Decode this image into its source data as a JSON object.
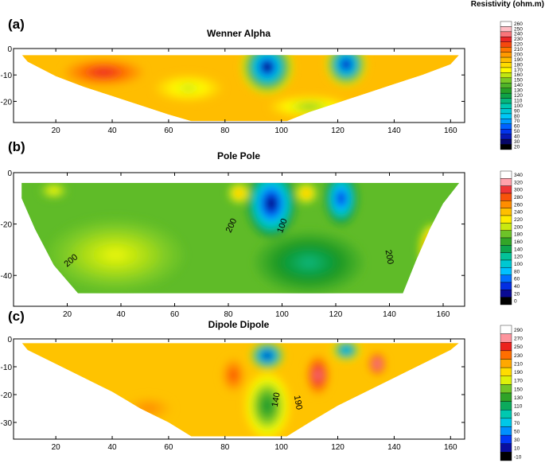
{
  "figure": {
    "legend_title": "Resistivity (ohm.m)"
  },
  "chart_data": [
    {
      "type": "heatmap",
      "panel_label": "(a)",
      "title": "Wenner Alpha",
      "xlim": [
        5,
        165
      ],
      "ylim": [
        -28,
        0
      ],
      "x_ticks": [
        20,
        40,
        60,
        80,
        100,
        120,
        140,
        160
      ],
      "y_ticks": [
        0,
        -10,
        -20
      ],
      "colorbar_ticks": [
        260,
        250,
        240,
        230,
        220,
        210,
        200,
        190,
        180,
        170,
        160,
        150,
        140,
        130,
        120,
        110,
        100,
        90,
        80,
        70,
        60,
        50,
        40,
        30,
        20
      ],
      "colorbar_range": [
        20,
        260
      ],
      "contour_labels": [],
      "background_value": 190,
      "section_outline": [
        [
          8,
          -2.5
        ],
        [
          163,
          -2.5
        ],
        [
          160,
          -6
        ],
        [
          150,
          -10
        ],
        [
          140,
          -13.5
        ],
        [
          130,
          -17
        ],
        [
          120,
          -20.5
        ],
        [
          110,
          -24
        ],
        [
          102,
          -27.5
        ],
        [
          68,
          -27.5
        ],
        [
          60,
          -25
        ],
        [
          50,
          -21.5
        ],
        [
          40,
          -18
        ],
        [
          30,
          -14.5
        ],
        [
          20,
          -10.5
        ],
        [
          10,
          -5
        ]
      ],
      "anomalies": [
        {
          "x": 95,
          "y": -7,
          "value": 20,
          "rx": 9,
          "ry": 10
        },
        {
          "x": 123,
          "y": -6,
          "value": 25,
          "rx": 7,
          "ry": 8
        },
        {
          "x": 37,
          "y": -9,
          "value": 230,
          "rx": 14,
          "ry": 5
        },
        {
          "x": 110,
          "y": -22,
          "value": 150,
          "rx": 14,
          "ry": 4
        },
        {
          "x": 67,
          "y": -15,
          "value": 160,
          "rx": 12,
          "ry": 5
        }
      ]
    },
    {
      "type": "heatmap",
      "panel_label": "(b)",
      "title": "Pole Pole",
      "xlim": [
        0,
        168
      ],
      "ylim": [
        -52,
        0
      ],
      "x_ticks": [
        20,
        40,
        60,
        80,
        100,
        120,
        140,
        160
      ],
      "y_ticks": [
        0,
        -20,
        -40
      ],
      "colorbar_ticks": [
        340,
        320,
        300,
        280,
        260,
        240,
        220,
        200,
        180,
        160,
        140,
        120,
        100,
        80,
        60,
        40,
        20,
        0
      ],
      "colorbar_range": [
        0,
        340
      ],
      "contour_labels": [
        {
          "text": "200",
          "x": 22,
          "y": -35,
          "rotate": -40
        },
        {
          "text": "200",
          "x": 82,
          "y": -21,
          "rotate": -65
        },
        {
          "text": "100",
          "x": 101,
          "y": -21,
          "rotate": -70
        },
        {
          "text": "200",
          "x": 139,
          "y": -33,
          "rotate": 80
        }
      ],
      "background_value": 175,
      "section_outline": [
        [
          3,
          -4
        ],
        [
          166,
          -4
        ],
        [
          160,
          -12
        ],
        [
          155,
          -22
        ],
        [
          150,
          -34
        ],
        [
          145,
          -47
        ],
        [
          24,
          -47
        ],
        [
          15,
          -36
        ],
        [
          8,
          -22
        ],
        [
          3,
          -10
        ]
      ],
      "anomalies": [
        {
          "x": 38,
          "y": -32,
          "value": 205,
          "rx": 25,
          "ry": 14
        },
        {
          "x": 96,
          "y": -12,
          "value": 10,
          "rx": 9,
          "ry": 13
        },
        {
          "x": 122,
          "y": -10,
          "value": 30,
          "rx": 6,
          "ry": 10
        },
        {
          "x": 109,
          "y": -8,
          "value": 250,
          "rx": 4,
          "ry": 4
        },
        {
          "x": 84,
          "y": -8,
          "value": 250,
          "rx": 4,
          "ry": 4
        },
        {
          "x": 156,
          "y": -30,
          "value": 300,
          "rx": 5,
          "ry": 10
        },
        {
          "x": 110,
          "y": -35,
          "value": 130,
          "rx": 20,
          "ry": 12
        },
        {
          "x": 15,
          "y": -7,
          "value": 215,
          "rx": 5,
          "ry": 3
        }
      ]
    },
    {
      "type": "heatmap",
      "panel_label": "(c)",
      "title": "Dipole Dipole",
      "xlim": [
        5,
        165
      ],
      "ylim": [
        -36,
        0
      ],
      "x_ticks": [
        20,
        40,
        60,
        80,
        100,
        120,
        140,
        160
      ],
      "y_ticks": [
        0,
        -10,
        -20,
        -30
      ],
      "colorbar_ticks": [
        290,
        270,
        250,
        230,
        210,
        190,
        170,
        150,
        130,
        110,
        90,
        70,
        50,
        30,
        10,
        -10
      ],
      "colorbar_range": [
        -10,
        290
      ],
      "contour_labels": [
        {
          "text": "140",
          "x": 99,
          "y": -22,
          "rotate": -80
        },
        {
          "text": "190",
          "x": 105,
          "y": -23,
          "rotate": 80
        }
      ],
      "background_value": 200,
      "section_outline": [
        [
          8,
          -1.5
        ],
        [
          163,
          -1.5
        ],
        [
          160,
          -4
        ],
        [
          150,
          -9
        ],
        [
          140,
          -14
        ],
        [
          130,
          -19
        ],
        [
          120,
          -24
        ],
        [
          110,
          -30
        ],
        [
          102,
          -35
        ],
        [
          68,
          -35
        ],
        [
          60,
          -30
        ],
        [
          50,
          -25
        ],
        [
          40,
          -19
        ],
        [
          30,
          -14
        ],
        [
          20,
          -9
        ],
        [
          10,
          -4
        ]
      ],
      "anomalies": [
        {
          "x": 95,
          "y": -6,
          "value": -10,
          "rx": 6,
          "ry": 5
        },
        {
          "x": 123,
          "y": -4,
          "value": 40,
          "rx": 5,
          "ry": 4
        },
        {
          "x": 113,
          "y": -13,
          "value": 270,
          "rx": 4,
          "ry": 7
        },
        {
          "x": 83,
          "y": -13,
          "value": 240,
          "rx": 4,
          "ry": 6
        },
        {
          "x": 134,
          "y": -9,
          "value": 280,
          "rx": 3,
          "ry": 4
        },
        {
          "x": 95,
          "y": -24,
          "value": 120,
          "rx": 8,
          "ry": 12
        },
        {
          "x": 53,
          "y": -25,
          "value": 220,
          "rx": 8,
          "ry": 4
        }
      ]
    }
  ]
}
